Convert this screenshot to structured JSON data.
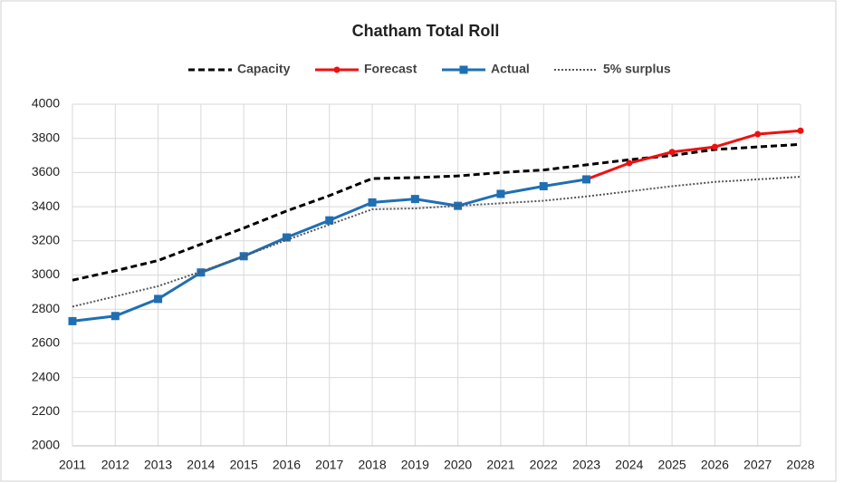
{
  "chart_data": {
    "type": "line",
    "title": "Chatham Total Roll",
    "categories": [
      "2011",
      "2012",
      "2013",
      "2014",
      "2015",
      "2016",
      "2017",
      "2018",
      "2019",
      "2020",
      "2021",
      "2022",
      "2023",
      "2024",
      "2025",
      "2026",
      "2027",
      "2028"
    ],
    "series": [
      {
        "name": "Capacity",
        "color": "#000000",
        "style": "dashed",
        "marker": "none",
        "values": [
          2970,
          3025,
          3085,
          3180,
          3275,
          3375,
          3465,
          3565,
          3570,
          3580,
          3600,
          3615,
          3645,
          3675,
          3700,
          3735,
          3750,
          3765
        ]
      },
      {
        "name": "Forecast",
        "color": "#ee1111",
        "style": "solid",
        "marker": "circle",
        "values": [
          null,
          null,
          null,
          null,
          null,
          null,
          null,
          null,
          null,
          null,
          null,
          null,
          3560,
          3655,
          3720,
          3750,
          3825,
          3845
        ]
      },
      {
        "name": "Actual",
        "color": "#1f6fb4",
        "style": "solid",
        "marker": "square",
        "values": [
          2730,
          2760,
          2860,
          3015,
          3110,
          3220,
          3320,
          3425,
          3445,
          3405,
          3475,
          3520,
          3560,
          null,
          null,
          null,
          null,
          null
        ]
      },
      {
        "name": "5% surplus",
        "color": "#555555",
        "style": "dotted",
        "marker": "none",
        "values": [
          2815,
          2875,
          2935,
          3020,
          3110,
          3205,
          3295,
          3385,
          3390,
          3405,
          3420,
          3435,
          3460,
          3490,
          3520,
          3545,
          3560,
          3575
        ]
      }
    ],
    "ylim": [
      2000,
      4000
    ],
    "yticks": [
      2000,
      2200,
      2400,
      2600,
      2800,
      3000,
      3200,
      3400,
      3600,
      3800,
      4000
    ],
    "grid": true,
    "legend": "top"
  }
}
